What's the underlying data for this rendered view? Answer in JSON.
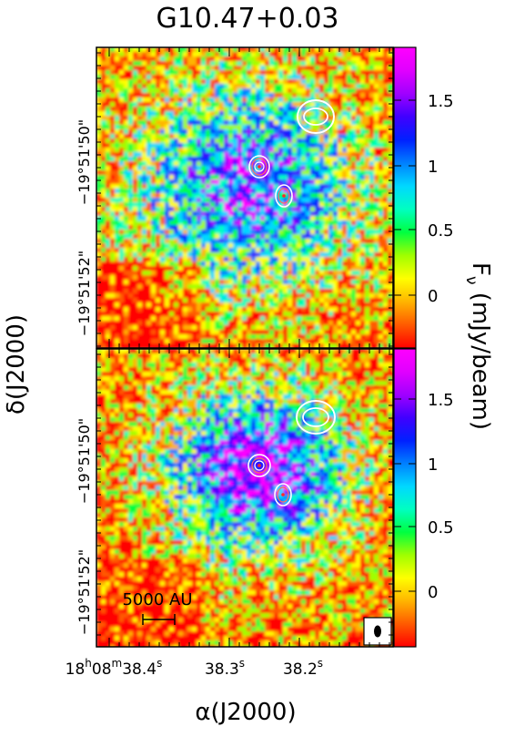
{
  "figure": {
    "title": "G10.47+0.03",
    "ylabel": "δ(J2000)",
    "xlabel": "α(J2000)",
    "dec_ticks": [
      "−19°51'50\"",
      "−19°51'52\""
    ],
    "ra_ticks": {
      "first": {
        "main": "18",
        "h": "h",
        "mid": "08",
        "m": "m",
        "sec": "38.4",
        "s": "s"
      },
      "rest": [
        {
          "main": "38.3",
          "s": "s"
        },
        {
          "main": "38.2",
          "s": "s"
        }
      ]
    },
    "scalebar_label": "5000 AU",
    "colorbar": {
      "label": "F",
      "label_sub": "ν",
      "label_unit": " (mJy/beam)",
      "ticks": [
        "1.5",
        "1",
        "0.5",
        "0"
      ],
      "colors": [
        "#ff0000",
        "#ff5a00",
        "#ffb400",
        "#ffff00",
        "#a0ff00",
        "#00ff40",
        "#00ffc0",
        "#00d8ff",
        "#0080ff",
        "#0020ff",
        "#4000ff",
        "#a000ff",
        "#e000ff",
        "#ff00ff"
      ]
    }
  }
}
